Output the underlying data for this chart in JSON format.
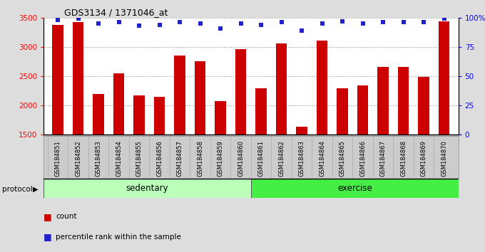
{
  "title": "GDS3134 / 1371046_at",
  "samples": [
    "GSM184851",
    "GSM184852",
    "GSM184853",
    "GSM184854",
    "GSM184855",
    "GSM184856",
    "GSM184857",
    "GSM184858",
    "GSM184859",
    "GSM184860",
    "GSM184861",
    "GSM184862",
    "GSM184863",
    "GSM184864",
    "GSM184865",
    "GSM184866",
    "GSM184867",
    "GSM184868",
    "GSM184869",
    "GSM184870"
  ],
  "counts": [
    3370,
    3430,
    2200,
    2550,
    2175,
    2150,
    2850,
    2760,
    2080,
    2960,
    2290,
    3060,
    1640,
    3110,
    2290,
    2340,
    2660,
    2660,
    2490,
    3440
  ],
  "percentile": [
    98,
    99,
    95,
    96,
    93,
    94,
    96,
    95,
    91,
    95,
    94,
    96,
    89,
    95,
    97,
    95,
    96,
    96,
    96,
    99
  ],
  "bar_color": "#cc0000",
  "dot_color": "#2222cc",
  "ylim_left": [
    1500,
    3500
  ],
  "ylim_right": [
    0,
    100
  ],
  "yticks_left": [
    1500,
    2000,
    2500,
    3000,
    3500
  ],
  "yticks_right": [
    0,
    25,
    50,
    75,
    100
  ],
  "ytick_labels_right": [
    "0",
    "25",
    "50",
    "75",
    "100%"
  ],
  "group_sedentary": {
    "label": "sedentary",
    "start": 0,
    "end": 10
  },
  "group_exercise": {
    "label": "exercise",
    "start": 10,
    "end": 20
  },
  "color_sedentary": "#bbffbb",
  "color_exercise": "#44ee44",
  "legend_count_label": "count",
  "legend_pct_label": "percentile rank within the sample",
  "xlabel_protocol": "protocol",
  "background_color": "#dddddd",
  "plot_bg_color": "#ffffff",
  "xtick_bg_color": "#cccccc",
  "grid_color": "#888888"
}
